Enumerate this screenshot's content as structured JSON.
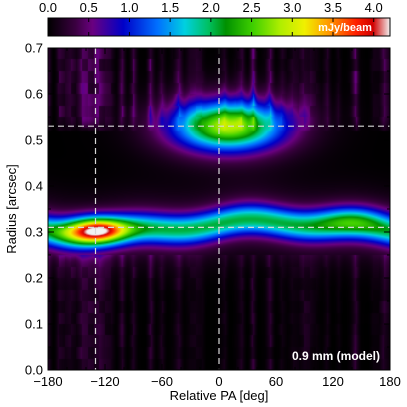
{
  "chart_data": {
    "type": "heatmap",
    "title": "",
    "xlabel": "Relative PA [deg]",
    "ylabel": "Radius [arcsec]",
    "xlim": [
      -180,
      180
    ],
    "ylim": [
      0.0,
      0.7
    ],
    "xticks": [
      -180,
      -120,
      -60,
      0,
      60,
      120,
      180
    ],
    "xtick_labels": [
      "−180",
      "−120",
      "−60",
      "0",
      "60",
      "120",
      "180"
    ],
    "yticks": [
      0.0,
      0.1,
      0.2,
      0.3,
      0.4,
      0.5,
      0.6,
      0.7
    ],
    "ytick_labels": [
      "0.0",
      "0.1",
      "0.2",
      "0.3",
      "0.4",
      "0.5",
      "0.6",
      "0.7"
    ],
    "colorbar": {
      "label": "mJy/beam",
      "range": [
        0.0,
        4.2
      ],
      "ticks": [
        0.0,
        0.5,
        1.0,
        1.5,
        2.0,
        2.5,
        3.0,
        3.5,
        4.0
      ],
      "tick_labels": [
        "0.0",
        "0.5",
        "1.0",
        "1.5",
        "2.0",
        "2.5",
        "3.0",
        "3.5",
        "4.0"
      ],
      "placement": "top"
    },
    "annotation": "0.9 mm (model)",
    "reference_lines": {
      "vertical_pa_deg": [
        -130,
        0
      ],
      "horizontal_radius_arcsec": [
        0.31,
        0.53
      ],
      "style": "dashed",
      "color": "#d8d8d8"
    },
    "features": [
      {
        "kind": "ring",
        "radius_arcsec": 0.31,
        "pa_range_deg": [
          -180,
          180
        ],
        "peak_mJy_beam": 2.0
      },
      {
        "kind": "ring-peak",
        "pa_deg": -130,
        "radius_arcsec": 0.305,
        "peak_mJy_beam": 4.2
      },
      {
        "kind": "ring-peak",
        "pa_deg": 140,
        "radius_arcsec": 0.33,
        "peak_mJy_beam": 2.3
      },
      {
        "kind": "ring-peak",
        "pa_deg": -60,
        "radius_arcsec": 0.31,
        "peak_mJy_beam": 1.7
      },
      {
        "kind": "blob",
        "pa_deg": 10,
        "radius_arcsec": 0.53,
        "peak_mJy_beam": 2.4
      },
      {
        "kind": "noise-streaks",
        "radius_arcsec": [
          0.55,
          0.7
        ],
        "level_mJy_beam": 0.5
      },
      {
        "kind": "noise-streaks",
        "radius_arcsec": [
          0.0,
          0.25
        ],
        "level_mJy_beam": 0.3
      }
    ]
  }
}
